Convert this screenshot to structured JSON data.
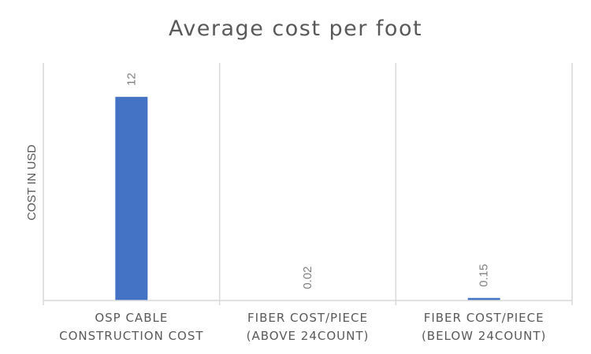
{
  "chart_data": {
    "type": "bar",
    "title": "Average cost per foot",
    "xlabel": "",
    "ylabel": "COST IN USD",
    "categories": [
      [
        "OSP CABLE",
        "CONSTRUCTION COST"
      ],
      [
        "FIBER COST/PIECE",
        "(ABOVE 24COUNT)"
      ],
      [
        "FIBER COST/PIECE",
        "(BELOW 24COUNT)"
      ]
    ],
    "values": [
      12,
      0.02,
      0.15
    ],
    "value_labels": [
      "12",
      "0.02",
      "0.15"
    ],
    "ylim": [
      0,
      14
    ],
    "grid": "vertical category separators",
    "legend": "none",
    "bar_color": "#4472C4",
    "axis_color": "#D9D9D9"
  }
}
